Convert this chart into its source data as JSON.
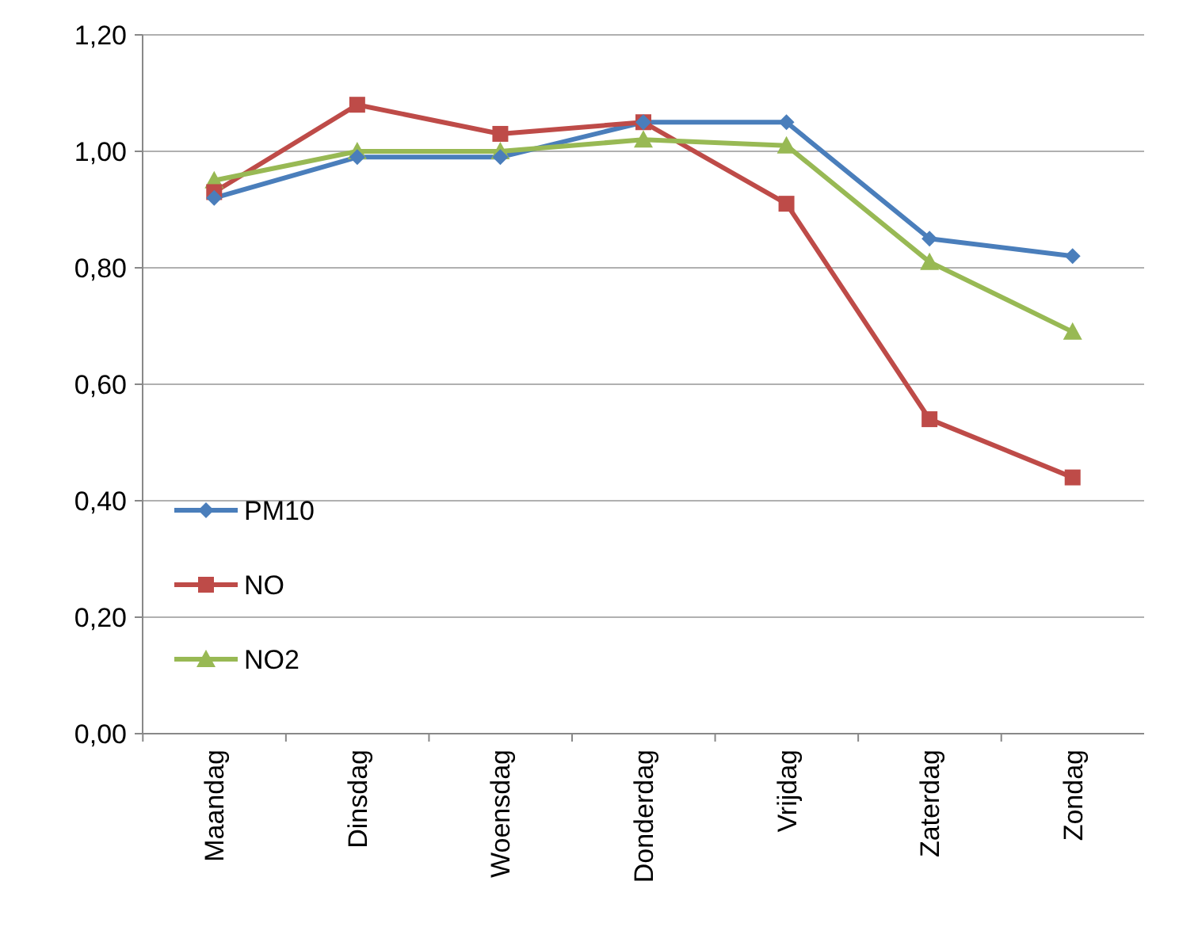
{
  "chart_data": {
    "type": "line",
    "categories": [
      "Maandag",
      "Dinsdag",
      "Woensdag",
      "Donderdag",
      "Vrijdag",
      "Zaterdag",
      "Zondag"
    ],
    "series": [
      {
        "name": "PM10",
        "color": "#4a7ebb",
        "marker": "diamond",
        "values": [
          0.92,
          0.99,
          0.99,
          1.05,
          1.05,
          0.85,
          0.82
        ]
      },
      {
        "name": "NO",
        "color": "#be4b48",
        "marker": "square",
        "values": [
          0.93,
          1.08,
          1.03,
          1.05,
          0.91,
          0.54,
          0.44
        ]
      },
      {
        "name": "NO2",
        "color": "#98b954",
        "marker": "triangle",
        "values": [
          0.95,
          1.0,
          1.0,
          1.02,
          1.01,
          0.81,
          0.69
        ]
      }
    ],
    "ylim": [
      0,
      1.2
    ],
    "yticks": [
      {
        "value": 0,
        "label": "0,00"
      },
      {
        "value": 0.2,
        "label": "0,20"
      },
      {
        "value": 0.4,
        "label": "0,40"
      },
      {
        "value": 0.6,
        "label": "0,60"
      },
      {
        "value": 0.8,
        "label": "0,80"
      },
      {
        "value": 1,
        "label": "1,00"
      },
      {
        "value": 1.2,
        "label": "1,20"
      }
    ],
    "grid": "y",
    "legend": "left",
    "line_style": "solid"
  }
}
